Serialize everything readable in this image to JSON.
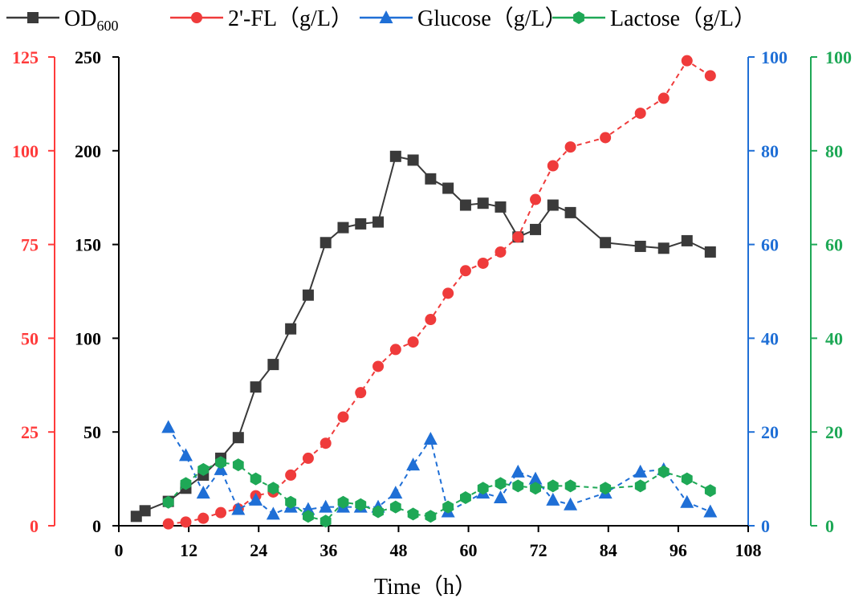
{
  "chart_data": {
    "type": "line",
    "xlabel": "Time（h）",
    "x_ticks": [
      0,
      12,
      24,
      36,
      48,
      60,
      72,
      84,
      96,
      108
    ],
    "xlim": [
      0,
      108
    ],
    "axes": {
      "od": {
        "ylim": [
          0,
          250
        ],
        "ticks": [
          0,
          50,
          100,
          150,
          200,
          250
        ],
        "color": "#000000"
      },
      "fl": {
        "ylim": [
          0,
          125
        ],
        "ticks": [
          0,
          25,
          50,
          75,
          100,
          125
        ],
        "color": "#ff3b3b"
      },
      "glc": {
        "ylim": [
          0,
          100
        ],
        "ticks": [
          0,
          20,
          40,
          60,
          80,
          100
        ],
        "color": "#1f6fd6"
      },
      "lac": {
        "ylim": [
          0,
          100
        ],
        "ticks": [
          0,
          20,
          40,
          60,
          80,
          100
        ],
        "color": "#1ea856"
      }
    },
    "legend": {
      "placement": "top"
    },
    "series": [
      {
        "key": "od",
        "axis": "od",
        "marker": "square",
        "color": "#3a3a3a",
        "legend_main": "OD",
        "legend_sub": "600",
        "x": [
          3,
          4.5,
          8.5,
          11.5,
          14.5,
          17.5,
          20.5,
          23.5,
          26.5,
          29.5,
          32.5,
          35.5,
          38.5,
          41.5,
          44.5,
          47.5,
          50.5,
          53.5,
          56.5,
          59.5,
          62.5,
          65.5,
          68.5,
          71.5,
          74.5,
          77.5,
          83.5,
          89.5,
          93.5,
          97.5,
          101.5
        ],
        "y": [
          5,
          8,
          13,
          20,
          27,
          36,
          47,
          74,
          86,
          105,
          123,
          151,
          159,
          161,
          162,
          197,
          195,
          185,
          180,
          171,
          172,
          170,
          154,
          158,
          171,
          167,
          151,
          149,
          148,
          152,
          146
        ]
      },
      {
        "key": "fl",
        "axis": "fl",
        "marker": "circle",
        "color": "#ef3b3b",
        "legend_main": "2'-FL（g/L）",
        "legend_sub": "",
        "x": [
          8.5,
          11.5,
          14.5,
          17.5,
          20.5,
          23.5,
          26.5,
          29.5,
          32.5,
          35.5,
          38.5,
          41.5,
          44.5,
          47.5,
          50.5,
          53.5,
          56.5,
          59.5,
          62.5,
          65.5,
          68.5,
          71.5,
          74.5,
          77.5,
          83.5,
          89.5,
          93.5,
          97.5,
          101.5
        ],
        "y": [
          0.5,
          1,
          2,
          3.5,
          4.5,
          8,
          9,
          13.5,
          18,
          22,
          29,
          35.5,
          42.5,
          47,
          49,
          55,
          62,
          68,
          70,
          73,
          77,
          87,
          96,
          101,
          103.5,
          110,
          114,
          124,
          120
        ]
      },
      {
        "key": "glc",
        "axis": "glc",
        "marker": "triangle",
        "color": "#1f6fd6",
        "legend_main": "Glucose（g/L）",
        "legend_sub": "",
        "x": [
          8.5,
          11.5,
          14.5,
          17.5,
          20.5,
          23.5,
          26.5,
          29.5,
          32.5,
          35.5,
          38.5,
          41.5,
          44.5,
          47.5,
          50.5,
          53.5,
          56.5,
          62.5,
          65.5,
          68.5,
          71.5,
          74.5,
          77.5,
          83.5,
          89.5,
          93.5,
          97.5,
          101.5
        ],
        "y": [
          21,
          15,
          7,
          12,
          3.5,
          5.5,
          2.5,
          4,
          3.5,
          4,
          4,
          4,
          4,
          7,
          13,
          18.5,
          3,
          7,
          6,
          11.5,
          10,
          5.5,
          4.5,
          7,
          11.5,
          12,
          5,
          3
        ]
      },
      {
        "key": "lac",
        "axis": "lac",
        "marker": "hexagon",
        "color": "#1ea856",
        "legend_main": "Lactose（g/L）",
        "legend_sub": "",
        "x": [
          8.5,
          11.5,
          14.5,
          17.5,
          20.5,
          23.5,
          26.5,
          29.5,
          32.5,
          35.5,
          38.5,
          41.5,
          44.5,
          47.5,
          50.5,
          53.5,
          56.5,
          59.5,
          62.5,
          65.5,
          68.5,
          71.5,
          74.5,
          77.5,
          83.5,
          89.5,
          93.5,
          97.5,
          101.5
        ],
        "y": [
          5,
          9,
          12,
          13.5,
          13,
          10,
          8,
          5,
          2,
          1,
          5,
          4.5,
          3,
          4,
          2.5,
          2,
          4,
          6,
          8,
          9,
          8.5,
          8,
          8.5,
          8.5,
          8,
          8.5,
          11.5,
          10,
          7.5
        ]
      }
    ]
  }
}
